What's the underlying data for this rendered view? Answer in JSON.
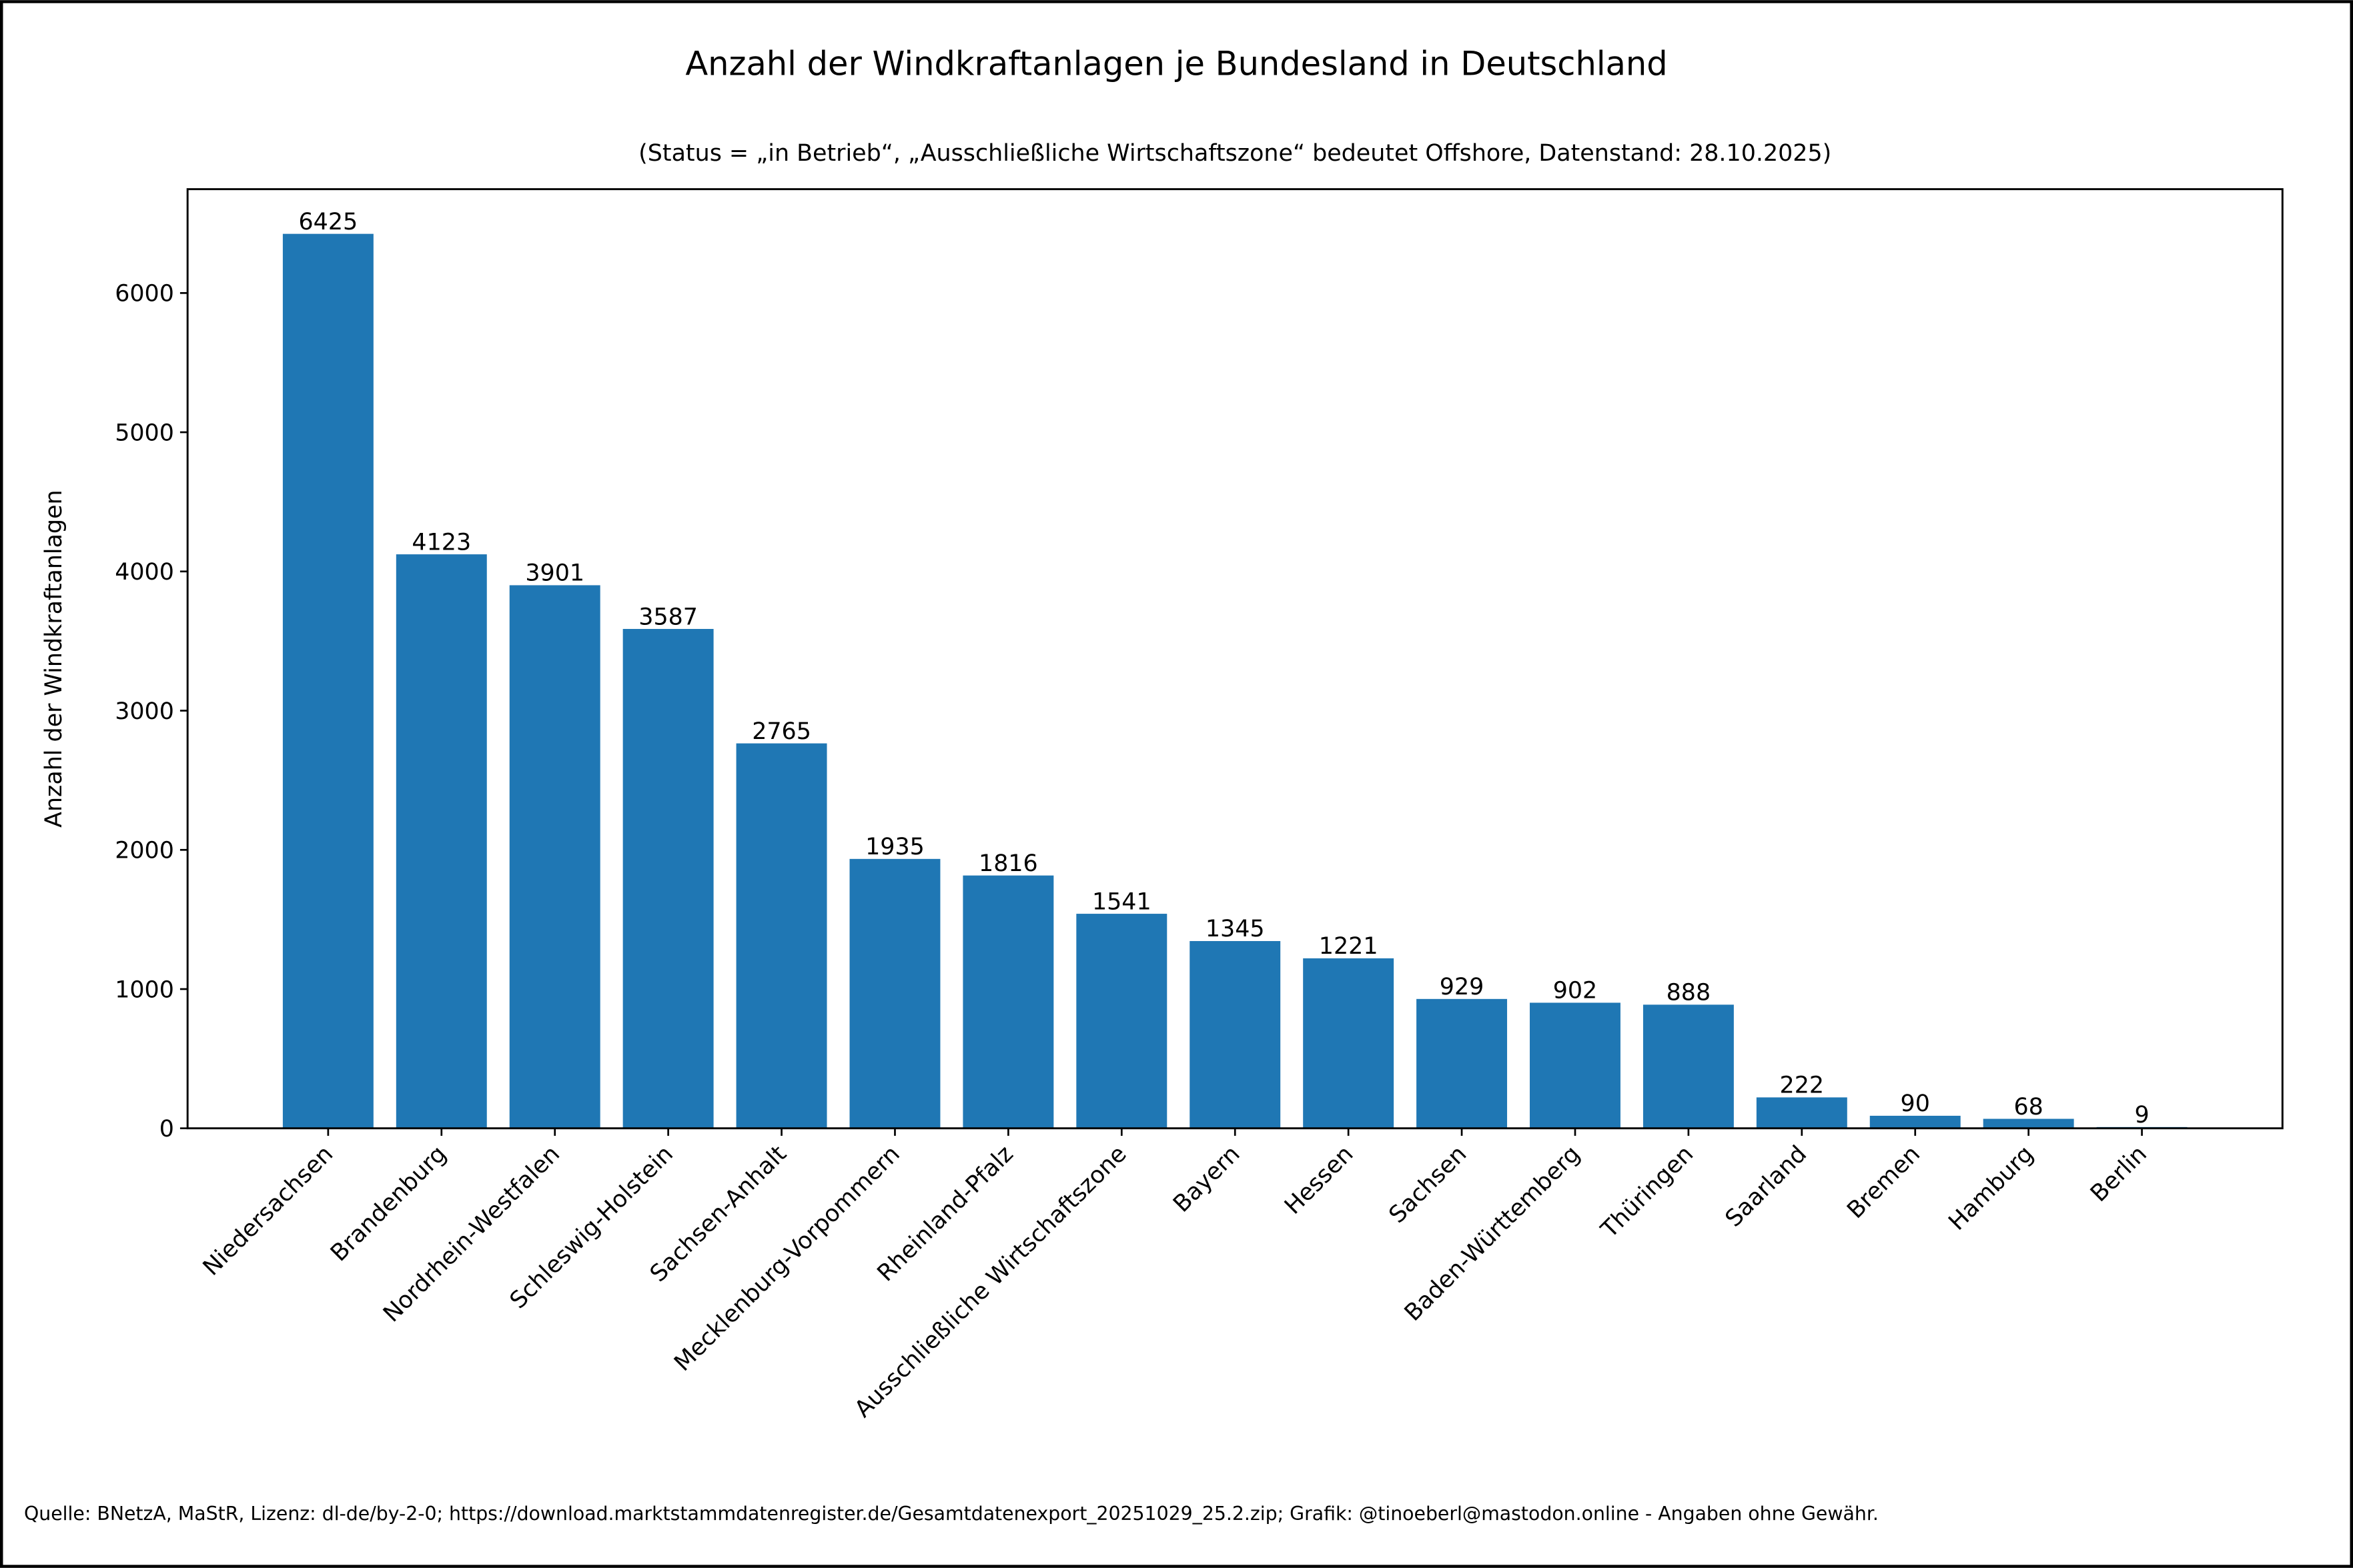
{
  "chart_data": {
    "type": "bar",
    "title": "Anzahl der Windkraftanlagen je Bundesland in Deutschland",
    "subtitle": "(Status = „in Betrieb“, „Ausschließliche Wirtschaftszone“ bedeutet Offshore, Datenstand: 28.10.2025)",
    "xlabel": "",
    "ylabel": "Anzahl der Windkraftanlagen",
    "categories": [
      "Niedersachsen",
      "Brandenburg",
      "Nordrhein-Westfalen",
      "Schleswig-Holstein",
      "Sachsen-Anhalt",
      "Mecklenburg-Vorpommern",
      "Rheinland-Pfalz",
      "Ausschließliche Wirtschaftszone",
      "Bayern",
      "Hessen",
      "Sachsen",
      "Baden-Württemberg",
      "Thüringen",
      "Saarland",
      "Bremen",
      "Hamburg",
      "Berlin"
    ],
    "values": [
      6425,
      4123,
      3901,
      3587,
      2765,
      1935,
      1816,
      1541,
      1345,
      1221,
      929,
      902,
      888,
      222,
      90,
      68,
      9
    ],
    "data_labels": [
      "6425",
      "4123",
      "3901",
      "3587",
      "2765",
      "1935",
      "1816",
      "1541",
      "1345",
      "1221",
      "929",
      "902",
      "888",
      "222",
      "90",
      "68",
      "9"
    ],
    "ylim": [
      0,
      6746
    ],
    "yticks": [
      "0",
      "1000",
      "2000",
      "3000",
      "4000",
      "5000",
      "6000"
    ],
    "grid": false,
    "bar_color": "#1f77b4",
    "footer": "Quelle: BNetzA, MaStR, Lizenz: dl-de/by-2-0; https://download.marktstammdatenregister.de/Gesamtdatenexport_20251029_25.2.zip; Grafik: @tinoeberl@mastodon.online - Angaben ohne Gewähr."
  }
}
